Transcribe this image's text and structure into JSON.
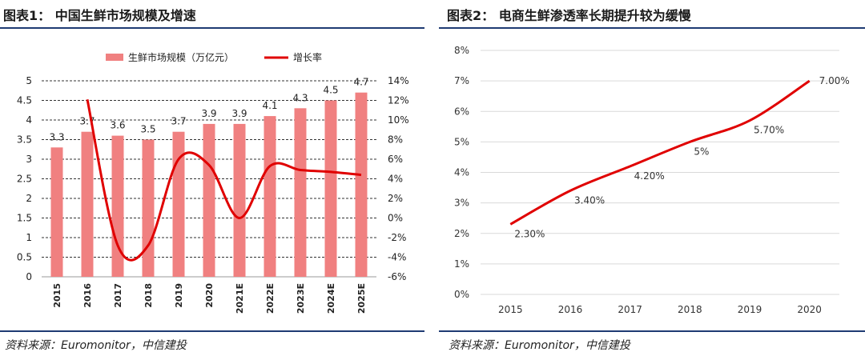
{
  "colors": {
    "bar": "#f08080",
    "line": "#e00000",
    "rule": "#1f3b73",
    "grid_right": "#d9d9d9"
  },
  "left": {
    "title": "图表1：  中国生鲜市场规模及增速",
    "source": "资料来源：Euromonitor，中信建投",
    "chart_data": {
      "type": "bar",
      "categories": [
        "2015",
        "2016",
        "2017",
        "2018",
        "2019",
        "2020",
        "2021E",
        "2022E",
        "2023E",
        "2024E",
        "2025E"
      ],
      "series": [
        {
          "name": "生鲜市场规模（万亿元）",
          "type": "bar",
          "axis": "left",
          "values": [
            3.3,
            3.7,
            3.6,
            3.5,
            3.7,
            3.9,
            3.9,
            4.1,
            4.3,
            4.5,
            4.7
          ],
          "data_labels": [
            "3.3",
            "3.7",
            "3.6",
            "3.5",
            "3.7",
            "3.9",
            "3.9",
            "4.1",
            "4.3",
            "4.5",
            "4.7"
          ]
        },
        {
          "name": "增长率",
          "type": "line",
          "axis": "right",
          "values": [
            null,
            12.1,
            -2.8,
            -2.8,
            6.0,
            5.4,
            0.0,
            5.3,
            4.9,
            4.7,
            4.4
          ]
        }
      ],
      "y_left": {
        "min": 0,
        "max": 5,
        "ticks": [
          "0",
          "0.5",
          "1",
          "1.5",
          "2",
          "2.5",
          "3",
          "3.5",
          "4",
          "4.5",
          "5"
        ]
      },
      "y_right": {
        "min": -6,
        "max": 14,
        "ticks": [
          "-6%",
          "-4%",
          "-2%",
          "0%",
          "2%",
          "4%",
          "6%",
          "8%",
          "10%",
          "12%",
          "14%"
        ]
      },
      "grid": true,
      "legend_position": "top"
    }
  },
  "right": {
    "title": "图表2：  电商生鲜渗透率长期提升较为缓慢",
    "source": "资料来源：Euromonitor，中信建投",
    "chart_data": {
      "type": "line",
      "categories": [
        "2015",
        "2016",
        "2017",
        "2018",
        "2019",
        "2020"
      ],
      "series": [
        {
          "values": [
            2.3,
            3.4,
            4.2,
            5.0,
            5.7,
            7.0
          ],
          "data_labels": [
            "2.30%",
            "3.40%",
            "4.20%",
            "5%",
            "5.70%",
            "7.00%"
          ]
        }
      ],
      "y": {
        "min": 0,
        "max": 8,
        "ticks": [
          "0%",
          "1%",
          "2%",
          "3%",
          "4%",
          "5%",
          "6%",
          "7%",
          "8%"
        ]
      },
      "grid": true
    }
  }
}
